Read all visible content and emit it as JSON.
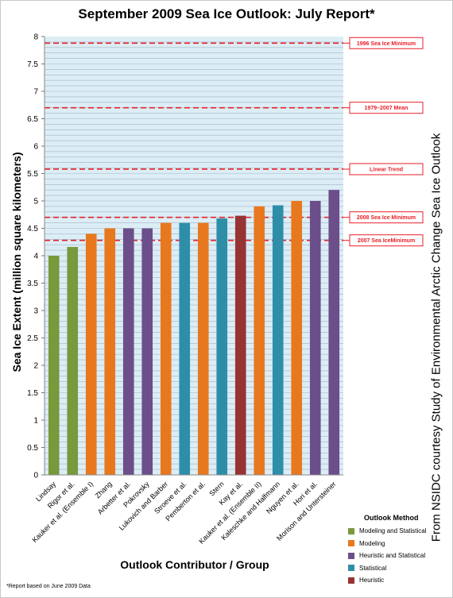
{
  "chart_data": {
    "type": "bar",
    "title": "September 2009 Sea Ice Outlook: July Report*",
    "xlabel": "Outlook Contributor / Group",
    "ylabel": "Sea Ice Extent (million square kilometers)",
    "ylim": [
      0,
      8
    ],
    "yticks": [
      "0",
      "0.5",
      "1",
      "1.5",
      "2",
      "2.5",
      "3",
      "3.5",
      "4",
      "4.5",
      "5",
      "5.5",
      "6",
      "6.5",
      "7",
      "7.5",
      "8"
    ],
    "grid": true,
    "categories": [
      "Lindsay",
      "Rigor et al.",
      "Kauker et al. (Ensemble I)",
      "Zhang",
      "Arbetter et al.",
      "Pokrovsky",
      "Lukovich and Barber",
      "Stroeve et al.",
      "Pemberton et al.",
      "Stern",
      "Kay et al.",
      "Kauker et al. (Ensemble II)",
      "Kaleschke and Halfmann",
      "Nguyen et al.",
      "Hori et al.",
      "Morison and Untersteiner"
    ],
    "values": [
      4.0,
      4.16,
      4.4,
      4.5,
      4.5,
      4.5,
      4.6,
      4.6,
      4.6,
      4.68,
      4.73,
      4.9,
      4.92,
      5.0,
      5.0,
      5.2
    ],
    "methods": [
      "Modeling and Statistical",
      "Modeling and Statistical",
      "Modeling",
      "Modeling",
      "Heuristic and Statistical",
      "Heuristic and Statistical",
      "Modeling",
      "Statistical",
      "Modeling",
      "Statistical",
      "Heuristic",
      "Modeling",
      "Statistical",
      "Modeling",
      "Heuristic and Statistical",
      "Heuristic and Statistical"
    ],
    "reference_lines": [
      {
        "label": "1996 Sea Ice Minimum",
        "value": 7.88
      },
      {
        "label": "1979–2007 Mean",
        "value": 6.7
      },
      {
        "label": "Linear Trend",
        "value": 5.58
      },
      {
        "label": "2008 Sea Ice Minimum",
        "value": 4.7
      },
      {
        "label": "2007 Sea IceMinimum",
        "value": 4.28
      }
    ],
    "reference_color": "#e8202a",
    "legend": {
      "title": "Outlook Method",
      "position": "bottom-right",
      "items": [
        {
          "label": "Modeling and Statistical",
          "color": "#78993c"
        },
        {
          "label": "Modeling",
          "color": "#e8781e"
        },
        {
          "label": "Heuristic and Statistical",
          "color": "#6b4e8a"
        },
        {
          "label": "Statistical",
          "color": "#2e8ea8"
        },
        {
          "label": "Heuristic",
          "color": "#963434"
        }
      ]
    },
    "plot_background": "#dcedf5",
    "footnote": "*Report based on June 2009 Data",
    "credit": "From NSIDC courtesy Study of Environmental Arctic Change Sea Ice Outlook"
  }
}
